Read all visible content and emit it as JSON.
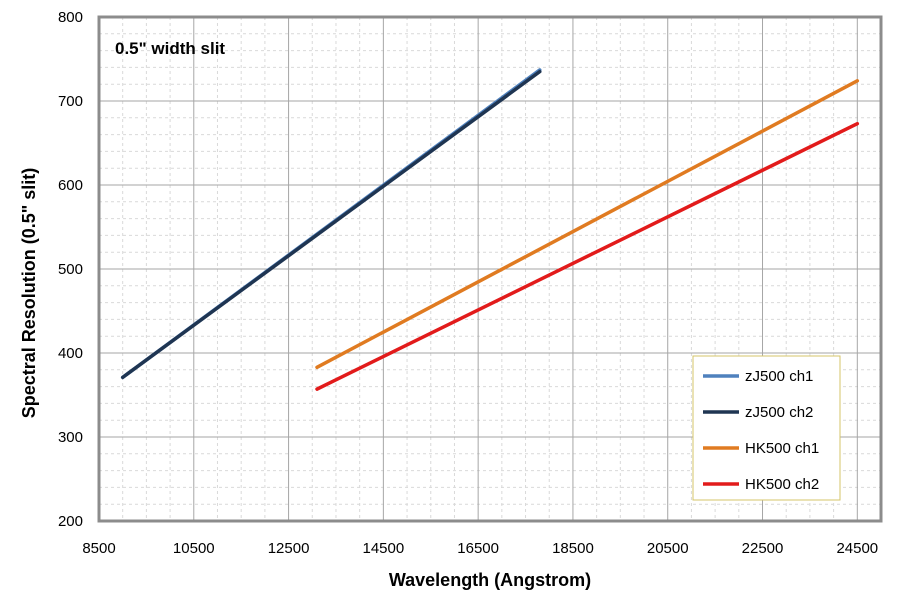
{
  "chart_data": {
    "type": "line",
    "annotation": "0.5\" width slit",
    "xlabel": "Wavelength (Angstrom)",
    "ylabel": "Spectral Resolution (0.5\" slit)",
    "xlim": [
      8500,
      25000
    ],
    "ylim": [
      200,
      800
    ],
    "x_ticks": [
      8500,
      10500,
      12500,
      14500,
      16500,
      18500,
      20500,
      22500,
      24500
    ],
    "y_ticks": [
      200,
      300,
      400,
      500,
      600,
      700,
      800
    ],
    "grid": true,
    "legend_position": "bottom-right",
    "series": [
      {
        "name": "zJ500 ch1",
        "color": "#4f81bd",
        "x": [
          9000,
          17800
        ],
        "y": [
          371,
          737
        ]
      },
      {
        "name": "zJ500 ch2",
        "color": "#1f3552",
        "x": [
          9000,
          17800
        ],
        "y": [
          371,
          735
        ]
      },
      {
        "name": "HK500 ch1",
        "color": "#e07b21",
        "x": [
          13100,
          24500
        ],
        "y": [
          383,
          724
        ]
      },
      {
        "name": "HK500 ch2",
        "color": "#e21b1b",
        "x": [
          13100,
          24500
        ],
        "y": [
          357,
          673
        ]
      }
    ]
  }
}
